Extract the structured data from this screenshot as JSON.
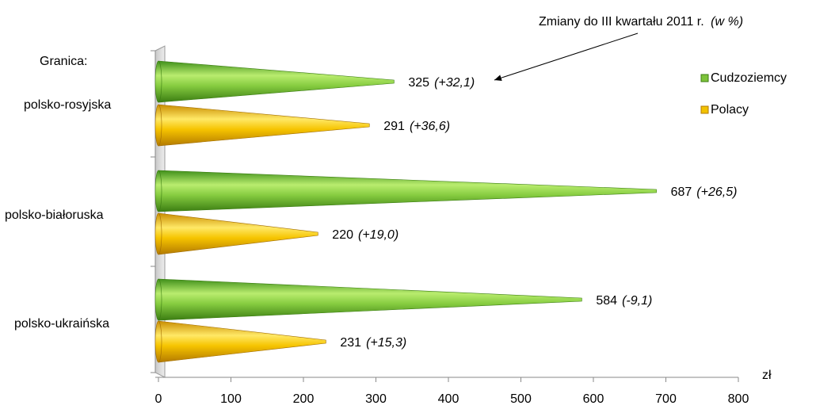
{
  "chart_data": {
    "type": "bar",
    "orientation": "horizontal",
    "annotation": {
      "text_main": "Zmiany do III kwartału 2011 r.",
      "text_italic": "(w %)"
    },
    "category_axis_title": "Granica:",
    "unit_label": "zł",
    "categories": [
      "polsko-rosyjska",
      "polsko-białoruska",
      "polsko-ukraińska"
    ],
    "series": [
      {
        "name": "Cudzoziemcy",
        "values": [
          325,
          687,
          584
        ],
        "changes": [
          "(+32,1)",
          "(+26,5)",
          "(-9,1)"
        ],
        "color": "#7dc33a"
      },
      {
        "name": "Polacy",
        "values": [
          291,
          220,
          231
        ],
        "changes": [
          "(+36,6)",
          "(+19,0)",
          "(+15,3)"
        ],
        "color": "#f2c200"
      }
    ],
    "xlim": [
      0,
      800
    ],
    "x_ticks": [
      "0",
      "100",
      "200",
      "300",
      "400",
      "500",
      "600",
      "700",
      "800"
    ],
    "legend_position": "right",
    "grid": false
  }
}
